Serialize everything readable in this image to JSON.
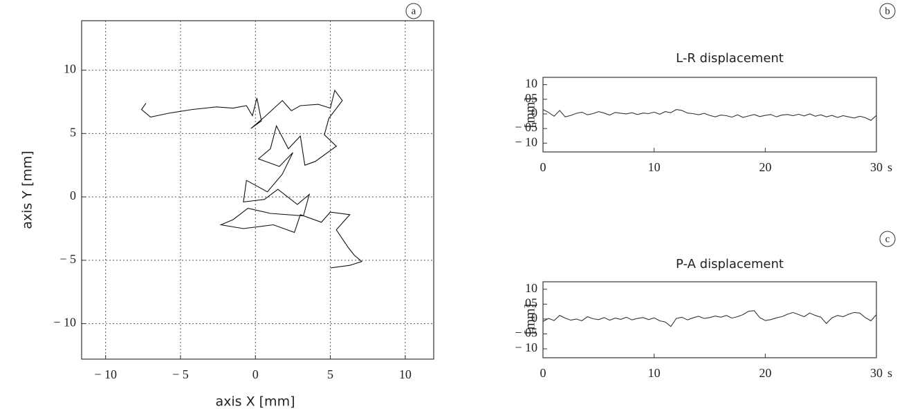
{
  "chart_data": [
    {
      "type": "line",
      "annotation": "a",
      "x_label": "axis X [mm]",
      "y_label": "axis Y [mm]",
      "xlim": [
        -11.6,
        11.9
      ],
      "ylim": [
        -12.8,
        13.9
      ],
      "grid": true,
      "color": "#111111",
      "xticks": [
        {
          "value": -10,
          "label": "− 10"
        },
        {
          "value": -5,
          "label": "− 5"
        },
        0,
        5,
        10
      ],
      "yticks": [
        {
          "value": -10,
          "label": "− 10"
        },
        {
          "value": -5,
          "label": "− 5"
        },
        0,
        5,
        10
      ],
      "x": [
        -7.3,
        -7.6,
        -7.0,
        -5.8,
        -4.2,
        -2.6,
        -1.5,
        -0.6,
        -0.2,
        0.1,
        0.4,
        -0.3,
        0.6,
        1.8,
        2.4,
        3.0,
        4.2,
        5.0,
        5.3,
        5.8,
        4.9,
        4.6,
        5.4,
        4.0,
        3.3,
        3.0,
        2.2,
        1.4,
        1.0,
        0.2,
        1.6,
        2.5,
        1.8,
        0.8,
        -0.6,
        -0.8,
        0.6,
        1.5,
        2.8,
        3.6,
        3.2,
        1.0,
        -0.5,
        -1.5,
        -2.3,
        -0.8,
        1.2,
        2.6,
        3.0,
        4.4,
        5.0,
        6.3,
        5.4,
        6.2,
        6.6,
        7.1,
        6.3,
        5.0
      ],
      "values": [
        7.4,
        6.9,
        6.3,
        6.6,
        6.9,
        7.1,
        7.0,
        7.2,
        6.4,
        7.8,
        6.0,
        5.4,
        6.3,
        7.6,
        6.8,
        7.2,
        7.3,
        7.0,
        8.4,
        7.6,
        6.2,
        4.9,
        4.0,
        2.8,
        2.5,
        4.8,
        3.8,
        5.6,
        3.8,
        3.0,
        2.4,
        3.5,
        1.8,
        0.4,
        1.3,
        -0.4,
        -0.2,
        0.6,
        -0.6,
        0.2,
        -1.5,
        -1.3,
        -0.9,
        -1.8,
        -2.2,
        -2.5,
        -2.2,
        -2.8,
        -1.4,
        -2.0,
        -1.2,
        -1.4,
        -2.6,
        -4.0,
        -4.6,
        -5.1,
        -5.4,
        -5.6
      ]
    },
    {
      "type": "line",
      "annotation": "b",
      "title": "L-R displacement",
      "x_label": "s",
      "y_label": "[mm]",
      "xlim": [
        0,
        30
      ],
      "ylim": [
        -13,
        12.5
      ],
      "grid": false,
      "color": "#333333",
      "xticks": [
        0,
        10,
        20,
        30
      ],
      "yticks": [
        {
          "value": 10,
          "label": "10"
        },
        {
          "value": 5,
          "label": "05"
        },
        0,
        {
          "value": -5,
          "label": "− 05"
        },
        {
          "value": -10,
          "label": "− 10"
        }
      ],
      "x": [
        0,
        0.5,
        1,
        1.5,
        2,
        2.5,
        3,
        3.5,
        4,
        4.5,
        5,
        5.5,
        6,
        6.5,
        7,
        7.5,
        8,
        8.5,
        9,
        9.5,
        10,
        10.5,
        11,
        11.5,
        12,
        12.5,
        13,
        13.5,
        14,
        14.5,
        15,
        15.5,
        16,
        16.5,
        17,
        17.5,
        18,
        18.5,
        19,
        19.5,
        20,
        20.5,
        21,
        21.5,
        22,
        22.5,
        23,
        23.5,
        24,
        24.5,
        25,
        25.5,
        26,
        26.5,
        27,
        27.5,
        28,
        28.5,
        29,
        29.5,
        30
      ],
      "values": [
        1.5,
        0.5,
        -0.8,
        1.2,
        -1.0,
        -0.5,
        0.2,
        0.6,
        -0.3,
        0.1,
        0.8,
        0.3,
        -0.4,
        0.5,
        0.2,
        0.0,
        0.4,
        -0.2,
        0.3,
        0.1,
        0.6,
        -0.1,
        0.8,
        0.4,
        1.5,
        1.2,
        0.3,
        0.1,
        -0.3,
        0.2,
        -0.5,
        -1.0,
        -0.4,
        -0.6,
        -1.1,
        -0.3,
        -1.2,
        -0.7,
        -0.2,
        -0.9,
        -0.5,
        -0.2,
        -1.0,
        -0.4,
        -0.2,
        -0.6,
        -0.1,
        -0.7,
        0.0,
        -0.8,
        -0.3,
        -1.0,
        -0.5,
        -1.2,
        -0.6,
        -1.0,
        -1.4,
        -0.8,
        -1.3,
        -2.2,
        -0.5
      ]
    },
    {
      "type": "line",
      "annotation": "c",
      "title": "P-A displacement",
      "x_label": "s",
      "y_label": "[mm]",
      "xlim": [
        0,
        30
      ],
      "ylim": [
        -13,
        12.5
      ],
      "grid": false,
      "color": "#333333",
      "xticks": [
        0,
        10,
        20,
        30
      ],
      "yticks": [
        {
          "value": 10,
          "label": "10"
        },
        {
          "value": 5,
          "label": "05"
        },
        0,
        {
          "value": -5,
          "label": "− 05"
        },
        {
          "value": -10,
          "label": "− 10"
        }
      ],
      "x": [
        0,
        0.5,
        1,
        1.5,
        2,
        2.5,
        3,
        3.5,
        4,
        4.5,
        5,
        5.5,
        6,
        6.5,
        7,
        7.5,
        8,
        8.5,
        9,
        9.5,
        10,
        10.5,
        11,
        11.5,
        12,
        12.5,
        13,
        13.5,
        14,
        14.5,
        15,
        15.5,
        16,
        16.5,
        17,
        17.5,
        18,
        18.5,
        19,
        19.5,
        20,
        20.5,
        21,
        21.5,
        22,
        22.5,
        23,
        23.5,
        24,
        24.5,
        25,
        25.5,
        26,
        26.5,
        27,
        27.5,
        28,
        28.5,
        29,
        29.5,
        30
      ],
      "values": [
        -0.8,
        0.2,
        -0.5,
        1.2,
        0.3,
        -0.4,
        0.0,
        -0.6,
        0.8,
        0.1,
        -0.2,
        0.5,
        -0.4,
        0.3,
        -0.1,
        0.6,
        -0.3,
        0.2,
        0.5,
        -0.2,
        0.4,
        -0.6,
        -1.0,
        -2.5,
        0.2,
        0.6,
        -0.3,
        0.4,
        0.9,
        0.2,
        0.5,
        1.0,
        0.6,
        1.2,
        0.3,
        0.8,
        1.5,
        2.6,
        2.8,
        0.5,
        -0.5,
        -0.2,
        0.4,
        0.8,
        1.6,
        2.2,
        1.5,
        0.8,
        2.0,
        1.2,
        0.6,
        -1.5,
        0.4,
        1.2,
        0.8,
        1.6,
        2.2,
        2.0,
        0.5,
        -0.6,
        1.5
      ]
    }
  ]
}
